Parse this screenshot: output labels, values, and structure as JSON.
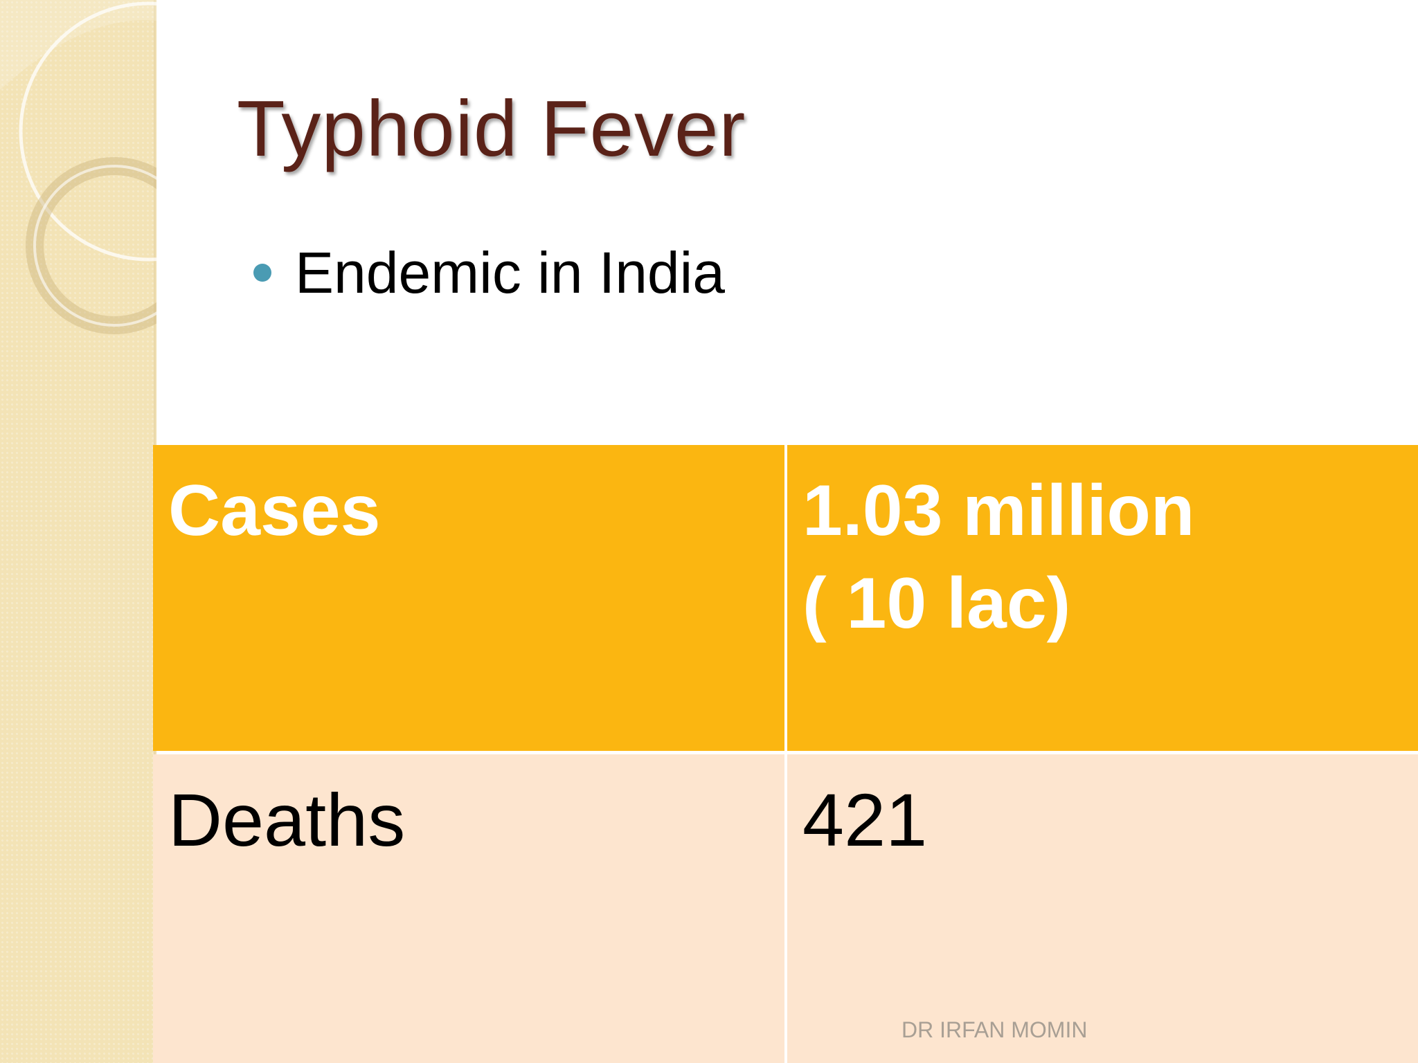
{
  "slide": {
    "title": "Typhoid Fever",
    "bullets": [
      "Endemic in India"
    ],
    "table": {
      "rows": [
        {
          "label": "Cases",
          "value": "1.03 million\n( 10 lac)"
        },
        {
          "label": "Deaths",
          "value": "421"
        }
      ]
    },
    "footer": "DR IRFAN MOMIN"
  },
  "colors": {
    "title": "#5a2218",
    "bullet": "#4a9bb3",
    "header_row": "#fbb611",
    "body_row": "#fde5cf",
    "side_band": "#f3e3b6"
  }
}
